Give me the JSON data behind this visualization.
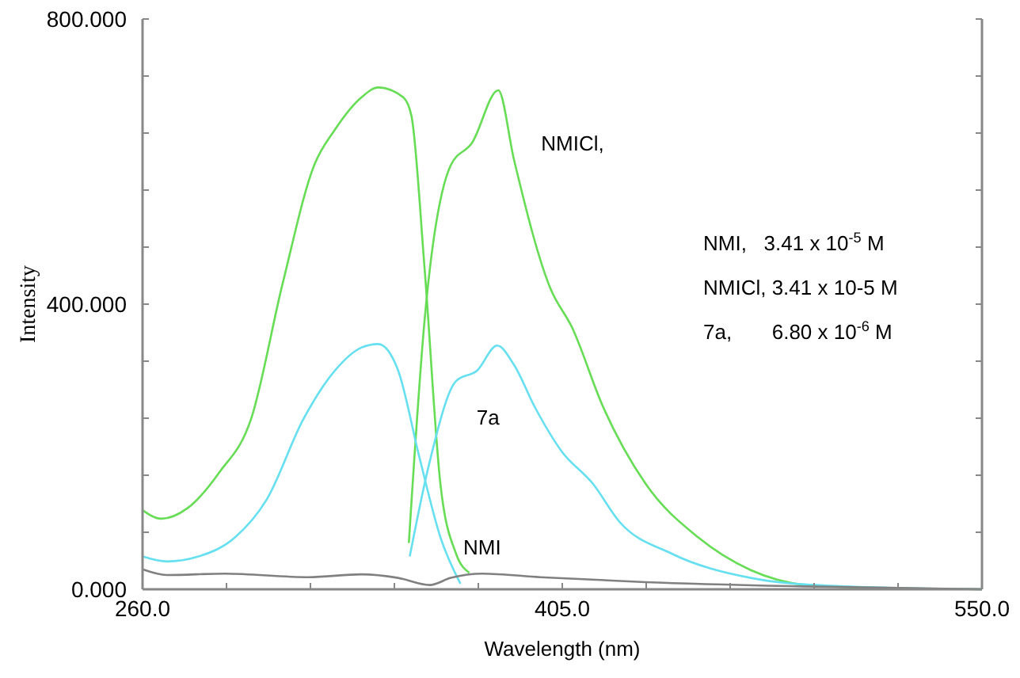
{
  "chart_data": {
    "type": "line",
    "xlabel": "Wavelength (nm)",
    "ylabel": "Intensity",
    "xlim": [
      260,
      550
    ],
    "ylim": [
      0,
      800
    ],
    "xticks": [
      {
        "value": 260,
        "label": "260.0"
      },
      {
        "value": 289,
        "label": null
      },
      {
        "value": 318,
        "label": null
      },
      {
        "value": 347,
        "label": null
      },
      {
        "value": 376,
        "label": null
      },
      {
        "value": 405,
        "label": "405.0"
      },
      {
        "value": 434,
        "label": null
      },
      {
        "value": 463,
        "label": null
      },
      {
        "value": 492,
        "label": null
      },
      {
        "value": 521,
        "label": null
      },
      {
        "value": 550,
        "label": "550.0"
      }
    ],
    "yticks": [
      {
        "value": 0,
        "label": "0.000"
      },
      {
        "value": 80,
        "label": null
      },
      {
        "value": 160,
        "label": null
      },
      {
        "value": 240,
        "label": null
      },
      {
        "value": 320,
        "label": null
      },
      {
        "value": 400,
        "label": "400.000"
      },
      {
        "value": 480,
        "label": null
      },
      {
        "value": 560,
        "label": null
      },
      {
        "value": 640,
        "label": null
      },
      {
        "value": 720,
        "label": null
      },
      {
        "value": 800,
        "label": "800.000"
      }
    ],
    "grid": false,
    "marker": "none",
    "line_style": "solid",
    "series": [
      {
        "color": "#66dd55",
        "x": [
          260,
          266.5,
          275.6,
          286.5,
          297.5,
          308.4,
          319.3,
          326.5,
          335.6,
          341.4,
          350.1,
          352.9,
          357.4,
          362.9,
          368.3,
          372.9
        ],
        "values": [
          111,
          99,
          114,
          164,
          239,
          429,
          595,
          645,
          690,
          704,
          690,
          664,
          452,
          148,
          50,
          23
        ]
      },
      {
        "name": "NMICl,",
        "color": "#66dd55",
        "x": [
          352,
          357.4,
          366.5,
          373.8,
          382.9,
          388.3,
          401,
          408.3,
          419.2,
          433.8,
          451.9,
          470.1,
          491.9,
          524.5,
          550
        ],
        "values": [
          65,
          376,
          595,
          626,
          700,
          603,
          421,
          368,
          255,
          148,
          73,
          27,
          5,
          1,
          0
        ]
      },
      {
        "color": "#66e0f0",
        "x": [
          260,
          268.4,
          279.3,
          292,
          302.9,
          315.6,
          326.5,
          335.6,
          341.4,
          348.3,
          355.6,
          362.9,
          369.8
        ],
        "values": [
          46,
          39,
          46,
          73,
          126,
          239,
          307,
          339,
          344,
          307,
          186,
          73,
          8
        ]
      },
      {
        "name": "7a",
        "color": "#66e0f0",
        "x": [
          352.3,
          359.2,
          368.3,
          375.6,
          382.5,
          388.3,
          395.6,
          404.7,
          415.6,
          424.7,
          442.8,
          470.1,
          497.4,
          550
        ],
        "values": [
          46,
          179,
          292,
          307,
          342,
          315,
          255,
          194,
          148,
          95,
          50,
          16,
          5,
          0
        ]
      },
      {
        "name": "NMI",
        "color": "#808080",
        "x": [
          260,
          268.4,
          288.4,
          317.4,
          335.6,
          348.3,
          359.2,
          366.5,
          377.4,
          397.4,
          433.8,
          488.3,
          550
        ],
        "values": [
          28,
          20,
          22,
          17,
          21,
          16,
          6,
          16,
          22,
          17,
          10,
          4,
          0
        ]
      }
    ],
    "annotations": [
      "NMI,   3.41 x 10$^{-5}$ M",
      "NMICl, 3.41 x 10-5 M",
      "7a,       6.80 x 10$^{-6}$ M"
    ]
  }
}
